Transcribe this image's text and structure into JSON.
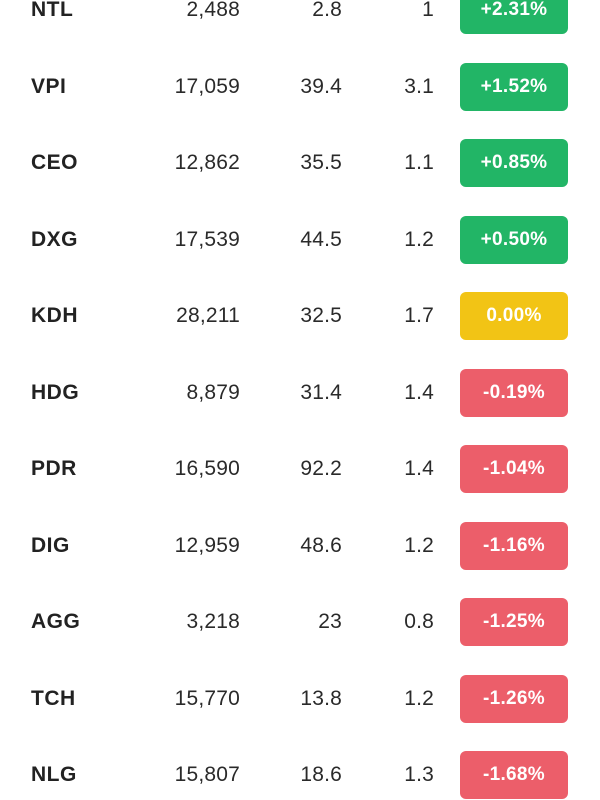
{
  "colors": {
    "up": "#22b566",
    "flat": "#f2c415",
    "down": "#ec5e6a"
  },
  "rows": [
    {
      "symbol": "NTL",
      "price": "2,488",
      "pe": "2.8",
      "pb": "1",
      "change": "+2.31%",
      "trend": "up"
    },
    {
      "symbol": "VPI",
      "price": "17,059",
      "pe": "39.4",
      "pb": "3.1",
      "change": "+1.52%",
      "trend": "up"
    },
    {
      "symbol": "CEO",
      "price": "12,862",
      "pe": "35.5",
      "pb": "1.1",
      "change": "+0.85%",
      "trend": "up"
    },
    {
      "symbol": "DXG",
      "price": "17,539",
      "pe": "44.5",
      "pb": "1.2",
      "change": "+0.50%",
      "trend": "up"
    },
    {
      "symbol": "KDH",
      "price": "28,211",
      "pe": "32.5",
      "pb": "1.7",
      "change": "0.00%",
      "trend": "flat"
    },
    {
      "symbol": "HDG",
      "price": "8,879",
      "pe": "31.4",
      "pb": "1.4",
      "change": "-0.19%",
      "trend": "down"
    },
    {
      "symbol": "PDR",
      "price": "16,590",
      "pe": "92.2",
      "pb": "1.4",
      "change": "-1.04%",
      "trend": "down"
    },
    {
      "symbol": "DIG",
      "price": "12,959",
      "pe": "48.6",
      "pb": "1.2",
      "change": "-1.16%",
      "trend": "down"
    },
    {
      "symbol": "AGG",
      "price": "3,218",
      "pe": "23",
      "pb": "0.8",
      "change": "-1.25%",
      "trend": "down"
    },
    {
      "symbol": "TCH",
      "price": "15,770",
      "pe": "13.8",
      "pb": "1.2",
      "change": "-1.26%",
      "trend": "down"
    },
    {
      "symbol": "NLG",
      "price": "15,807",
      "pe": "18.6",
      "pb": "1.3",
      "change": "-1.68%",
      "trend": "down"
    }
  ]
}
